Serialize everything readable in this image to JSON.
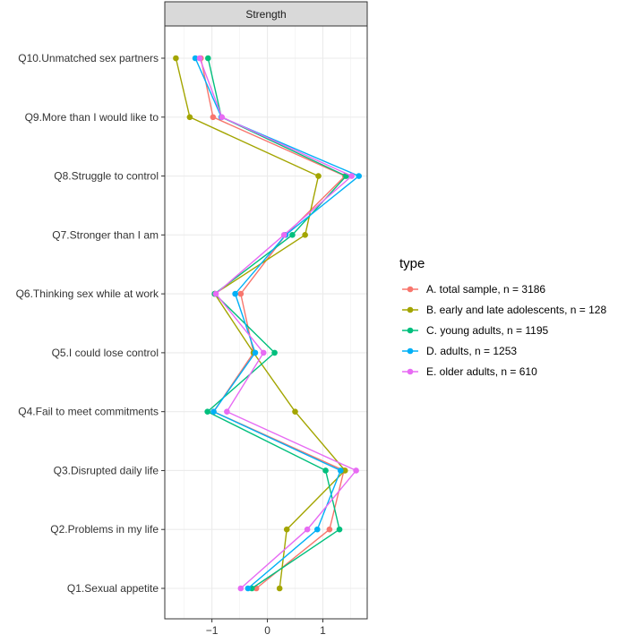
{
  "chart_data": {
    "type": "line",
    "strip_title": "Strength",
    "legend_title": "type",
    "legend_position": "right",
    "grid": true,
    "xlim": [
      -1.85,
      1.8
    ],
    "x_ticks": [
      -1,
      0,
      1
    ],
    "x_tick_labels": [
      "−1",
      "0",
      "1"
    ],
    "categories": [
      "Q1.Sexual appetite",
      "Q2.Problems in my life",
      "Q3.Disrupted daily life",
      "Q4.Fail to meet commitments",
      "Q5.I could lose control",
      "Q6.Thinking sex while at work",
      "Q7.Stronger than I am",
      "Q8.Struggle to control",
      "Q9.More than I would like to",
      "Q10.Unmatched sex partners"
    ],
    "series": [
      {
        "name": "A. total sample, n = 3186",
        "color": "#F8766D",
        "values": [
          -0.2,
          1.12,
          1.38,
          -0.97,
          -0.25,
          -0.48,
          0.33,
          1.4,
          -0.98,
          -1.2
        ]
      },
      {
        "name": "B. early and late adolescents, n = 128",
        "color": "#A3A500",
        "values": [
          0.22,
          0.35,
          1.4,
          0.5,
          -0.25,
          -0.95,
          0.68,
          0.92,
          -1.4,
          -1.65
        ]
      },
      {
        "name": "C. young adults, n = 1195",
        "color": "#00BF7D",
        "values": [
          -0.28,
          1.3,
          1.05,
          -1.08,
          0.13,
          -0.95,
          0.45,
          1.42,
          -0.83,
          -1.07
        ]
      },
      {
        "name": "D. adults, n = 1253",
        "color": "#00B0F6",
        "values": [
          -0.35,
          0.9,
          1.32,
          -0.97,
          -0.22,
          -0.58,
          0.33,
          1.65,
          -0.83,
          -1.3
        ]
      },
      {
        "name": "E. older adults, n = 610",
        "color": "#E76BF3",
        "values": [
          -0.48,
          0.72,
          1.6,
          -0.73,
          -0.07,
          -0.93,
          0.3,
          1.52,
          -0.82,
          -1.22
        ]
      }
    ]
  }
}
